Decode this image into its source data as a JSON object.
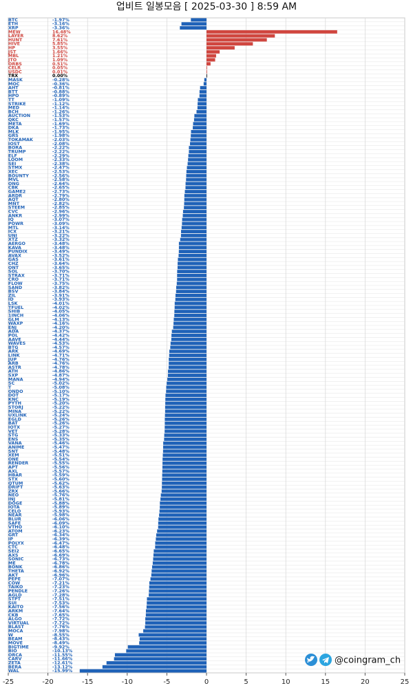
{
  "chart_data": {
    "type": "barh",
    "title": "업비트 일봉모음 [ 2025-03-30 ]  8:59 AM",
    "watermark": "@coingram_ch",
    "categories": [
      "BTC",
      "ETH",
      "XRP",
      "MEW",
      "LAYER",
      "HUNT",
      "HIVE",
      "HP",
      "JST",
      "MBL",
      "JTO",
      "ORBS",
      "CELR",
      "USDC",
      "TRX",
      "MASK",
      "MOC",
      "AHT",
      "BTT",
      "HPO",
      "TT",
      "STRIKE",
      "MED",
      "BCH",
      "AUCTION",
      "QKC",
      "META",
      "DKA",
      "MLK",
      "GRS",
      "TOKAMAK",
      "IOST",
      "BORA",
      "TRUMP",
      "ELF",
      "LOOM",
      "SEI",
      "STMX",
      "XEC",
      "BOUNTY",
      "MVL",
      "ONG",
      "CBK",
      "GAME2",
      "ARDR",
      "AQT",
      "MNT",
      "STEEM",
      "CVC",
      "ANKR",
      "IQ",
      "POWR",
      "MTL",
      "ICX",
      "UNI",
      "XTZ",
      "AERGO",
      "KAVA",
      "PUNDIX",
      "AVAX",
      "GAS",
      "CHZ",
      "ONT",
      "SOL",
      "STRAX",
      "CRO",
      "FLOW",
      "SAND",
      "BSV",
      "ZIL",
      "ID",
      "LSK",
      "TFUEL",
      "SHIB",
      "1INCH",
      "GLM",
      "WAXP",
      "ENJ",
      "ADA",
      "POL",
      "AAVE",
      "WAVES",
      "BTG",
      "ARK",
      "LINK",
      "JUP",
      "ARB",
      "ASTR",
      "ATH",
      "SXP",
      "MANA",
      "SC",
      "T",
      "ONDO",
      "DOT",
      "KNC",
      "PYTH",
      "STORJ",
      "MINA",
      "UXLINK",
      "EGLD",
      "BAT",
      "IOTX",
      "VET",
      "STG",
      "ENS",
      "VANA",
      "ANIME",
      "SNT",
      "XEM",
      "ONE",
      "RENDER",
      "APT",
      "AXL",
      "HBAR",
      "STX",
      "QTUM",
      "DRIFT",
      "ZRX",
      "NEO",
      "INJ",
      "DOGE",
      "IOTA",
      "CELO",
      "NEAR",
      "BLUR",
      "SAFE",
      "VTHO",
      "ATOM",
      "GRT",
      "IP",
      "POLYX",
      "CTC",
      "SEI2",
      "AXS",
      "SONIC",
      "ME",
      "BONK",
      "THETA",
      "AKT",
      "PEPE",
      "COW",
      "TAIKO",
      "PENDLE",
      "AGLD",
      "STPT",
      "SUI",
      "KAITO",
      "ARKM",
      "CKB",
      "ALGO",
      "VIRTUAL",
      "BLAST",
      "MOCA",
      "W",
      "BEAM",
      "MOVE",
      "BIGTIME",
      "BIO",
      "ORCA",
      "CARV",
      "ZETA",
      "BERA",
      "WAL"
    ],
    "values": [
      -1.97,
      -3.16,
      -3.36,
      16.48,
      8.62,
      7.61,
      5.85,
      3.55,
      1.66,
      1.21,
      1.09,
      0.51,
      0.05,
      0.01,
      0.0,
      -0.28,
      -0.36,
      -0.81,
      -0.88,
      -0.89,
      -1.09,
      -1.12,
      -1.14,
      -1.26,
      -1.53,
      -1.57,
      -1.69,
      -1.73,
      -1.95,
      -1.98,
      -2.03,
      -2.08,
      -2.22,
      -2.22,
      -2.29,
      -2.33,
      -2.38,
      -2.47,
      -2.53,
      -2.56,
      -2.58,
      -2.64,
      -2.65,
      -2.73,
      -2.79,
      -2.8,
      -2.82,
      -2.85,
      -2.96,
      -2.99,
      -3.07,
      -3.09,
      -3.14,
      -3.21,
      -3.22,
      -3.32,
      -3.48,
      -3.48,
      -3.49,
      -3.52,
      -3.61,
      -3.64,
      -3.65,
      -3.7,
      -3.71,
      -3.71,
      -3.75,
      -3.82,
      -3.84,
      -3.91,
      -3.93,
      -4.01,
      -4.02,
      -4.05,
      -4.06,
      -4.13,
      -4.16,
      -4.2,
      -4.37,
      -4.42,
      -4.44,
      -4.53,
      -4.57,
      -4.69,
      -4.71,
      -4.76,
      -4.76,
      -4.78,
      -4.86,
      -4.87,
      -4.94,
      -5.02,
      -5.08,
      -5.1,
      -5.17,
      -5.19,
      -5.2,
      -5.22,
      -5.22,
      -5.24,
      -5.26,
      -5.26,
      -5.27,
      -5.28,
      -5.33,
      -5.35,
      -5.46,
      -5.47,
      -5.48,
      -5.51,
      -5.54,
      -5.55,
      -5.56,
      -5.57,
      -5.59,
      -5.6,
      -5.62,
      -5.63,
      -5.66,
      -5.76,
      -5.81,
      -5.88,
      -5.89,
      -5.93,
      -5.98,
      -6.06,
      -6.09,
      -6.1,
      -6.23,
      -6.34,
      -6.39,
      -6.47,
      -6.48,
      -6.65,
      -6.69,
      -6.73,
      -6.78,
      -6.86,
      -6.92,
      -6.96,
      -7.07,
      -7.21,
      -7.23,
      -7.26,
      -7.28,
      -7.51,
      -7.53,
      -7.56,
      -7.64,
      -7.65,
      -7.72,
      -7.72,
      -7.76,
      -7.98,
      -8.55,
      -8.43,
      -8.49,
      -9.92,
      -10.13,
      -11.55,
      -11.66,
      -12.61,
      -13.12,
      -15.99
    ],
    "value_labels": [
      "-1.97%",
      "-3.16%",
      "-3.36%",
      "16.48%",
      "8.62%",
      "7.61%",
      "5.85%",
      "3.55%",
      "1.66%",
      "1.21%",
      "1.09%",
      "0.51%",
      "0.05%",
      "0.01%",
      "0.00%",
      "-0.28%",
      "-0.36%",
      "-0.81%",
      "-0.88%",
      "-0.89%",
      "-1.09%",
      "-1.12%",
      "-1.14%",
      "-1.26%",
      "-1.53%",
      "-1.57%",
      "-1.69%",
      "-1.73%",
      "-1.95%",
      "-1.98%",
      "-2.03%",
      "-2.08%",
      "-2.22%",
      "-2.22%",
      "-2.29%",
      "-2.33%",
      "-2.38%",
      "-2.47%",
      "-2.53%",
      "-2.56%",
      "-2.58%",
      "-2.64%",
      "-2.65%",
      "-2.73%",
      "-2.79%",
      "-2.80%",
      "-2.82%",
      "-2.85%",
      "-2.96%",
      "-2.99%",
      "-3.07%",
      "-3.09%",
      "-3.14%",
      "-3.21%",
      "-3.22%",
      "-3.32%",
      "-3.48%",
      "-3.48%",
      "-3.49%",
      "-3.52%",
      "-3.61%",
      "-3.64%",
      "-3.65%",
      "-3.70%",
      "-3.71%",
      "-3.71%",
      "-3.75%",
      "-3.82%",
      "-3.84%",
      "-3.91%",
      "-3.93%",
      "-4.01%",
      "-4.02%",
      "-4.05%",
      "-4.06%",
      "-4.13%",
      "-4.16%",
      "-4.20%",
      "-4.37%",
      "-4.42%",
      "-4.44%",
      "-4.53%",
      "-4.57%",
      "-4.69%",
      "-4.71%",
      "-4.76%",
      "-4.76%",
      "-4.78%",
      "-4.86%",
      "-4.87%",
      "-4.94%",
      "-5.02%",
      "-5.08%",
      "-5.10%",
      "-5.17%",
      "-5.19%",
      "-5.20%",
      "-5.22%",
      "-5.22%",
      "-5.24%",
      "-5.26%",
      "-5.26%",
      "-5.27%",
      "-5.28%",
      "-5.33%",
      "-5.35%",
      "-5.46%",
      "-5.47%",
      "-5.48%",
      "-5.51%",
      "-5.54%",
      "-5.55%",
      "-5.56%",
      "-5.57%",
      "-5.59%",
      "-5.60%",
      "-5.62%",
      "-5.63%",
      "-5.66%",
      "-5.76%",
      "-5.81%",
      "-5.88%",
      "-5.89%",
      "-5.93%",
      "-5.98%",
      "-6.06%",
      "-6.09%",
      "-6.10%",
      "-6.23%",
      "-6.34%",
      "-6.39%",
      "-6.47%",
      "-6.48%",
      "-6.65%",
      "-6.69%",
      "-6.73%",
      "-6.78%",
      "-6.86%",
      "-6.92%",
      "-6.96%",
      "-7.07%",
      "-7.21%",
      "-7.23%",
      "-7.26%",
      "-7.28%",
      "-7.51%",
      "-7.53%",
      "-7.56%",
      "-7.64%",
      "-7.65%",
      "-7.72%",
      "-7.72%",
      "-7.76%",
      "-7.98%",
      "-8.55%",
      "-8.43%",
      "-8.49%",
      "-9.92%",
      "-10.13%",
      "-11.55%",
      "-11.66%",
      "-12.61%",
      "-13.12%",
      "-15.99%"
    ],
    "positive_color": "#d0463f",
    "negative_color": "#1f62b8",
    "zero_color": "#000000",
    "xlim": [
      -25,
      25
    ],
    "xticks": [
      -25,
      -20,
      -15,
      -10,
      -5,
      0,
      5,
      10,
      15,
      20,
      25
    ],
    "grid": true
  }
}
